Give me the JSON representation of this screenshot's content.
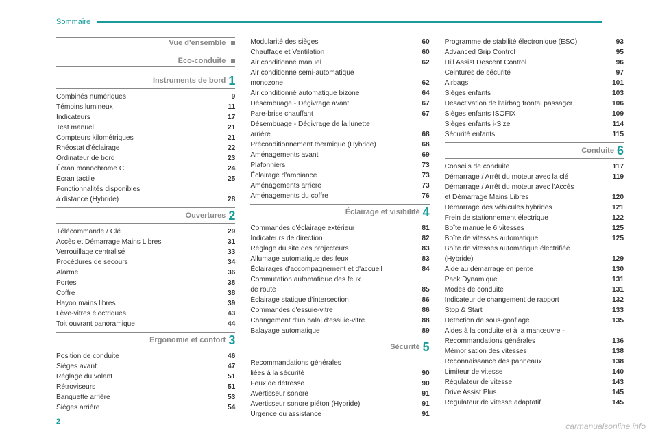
{
  "header": {
    "title": "Sommaire"
  },
  "page_number": "2",
  "watermark": "carmanualsonline.info",
  "colors": {
    "accent": "#1a9b9b",
    "gray": "#888888",
    "text": "#333333",
    "background": "#ffffff"
  },
  "columns": [
    {
      "sections": [
        {
          "title": "Vue d'ensemble",
          "num": "",
          "marker": true,
          "entries": []
        },
        {
          "title": "Eco-conduite",
          "num": "",
          "marker": true,
          "entries": []
        },
        {
          "title": "Instruments de bord",
          "num": "1",
          "marker": false,
          "entries": [
            {
              "label": "Combinés numériques",
              "page": "9"
            },
            {
              "label": "Témoins lumineux",
              "page": "11"
            },
            {
              "label": "Indicateurs",
              "page": "17"
            },
            {
              "label": "Test manuel",
              "page": "21"
            },
            {
              "label": "Compteurs kilométriques",
              "page": "21"
            },
            {
              "label": "Rhéostat d'éclairage",
              "page": "22"
            },
            {
              "label": "Ordinateur de bord",
              "page": "23"
            },
            {
              "label": "Écran monochrome C",
              "page": "24"
            },
            {
              "label": "Écran tactile",
              "page": "25"
            },
            {
              "label": "Fonctionnalités disponibles",
              "page": ""
            },
            {
              "label": "à distance (Hybride)",
              "page": "28"
            }
          ]
        },
        {
          "title": "Ouvertures",
          "num": "2",
          "marker": false,
          "entries": [
            {
              "label": "Télécommande / Clé",
              "page": "29"
            },
            {
              "label": "Accès et Démarrage Mains Libres",
              "page": "31"
            },
            {
              "label": "Verrouillage centralisé",
              "page": "33"
            },
            {
              "label": "Procédures de secours",
              "page": "34"
            },
            {
              "label": "Alarme",
              "page": "36"
            },
            {
              "label": "Portes",
              "page": "38"
            },
            {
              "label": "Coffre",
              "page": "38"
            },
            {
              "label": "Hayon mains libres",
              "page": "39"
            },
            {
              "label": "Lève-vitres électriques",
              "page": "43"
            },
            {
              "label": "Toit ouvrant panoramique",
              "page": "44"
            }
          ]
        },
        {
          "title": "Ergonomie et confort",
          "num": "3",
          "marker": false,
          "entries": [
            {
              "label": "Position de conduite",
              "page": "46"
            },
            {
              "label": "Sièges avant",
              "page": "47"
            },
            {
              "label": "Réglage du volant",
              "page": "51"
            },
            {
              "label": "Rétroviseurs",
              "page": "51"
            },
            {
              "label": "Banquette arrière",
              "page": "53"
            },
            {
              "label": "Sièges arrière",
              "page": "54"
            }
          ]
        }
      ]
    },
    {
      "sections": [
        {
          "title": "",
          "num": "",
          "marker": false,
          "continuation": true,
          "entries": [
            {
              "label": "Modularité des sièges",
              "page": "60"
            },
            {
              "label": "Chauffage et Ventilation",
              "page": "60"
            },
            {
              "label": "Air conditionné manuel",
              "page": "62"
            },
            {
              "label": "Air conditionné semi-automatique",
              "page": ""
            },
            {
              "label": "monozone",
              "page": "62"
            },
            {
              "label": "Air conditionné automatique bizone",
              "page": "64"
            },
            {
              "label": "Désembuage - Dégivrage avant",
              "page": "67"
            },
            {
              "label": "Pare-brise chauffant",
              "page": "67"
            },
            {
              "label": "Désembuage - Dégivrage de la lunette",
              "page": ""
            },
            {
              "label": "arrière",
              "page": "68"
            },
            {
              "label": "Préconditionnement thermique (Hybride)",
              "page": "68"
            },
            {
              "label": "Aménagements avant",
              "page": "69"
            },
            {
              "label": "Plafonniers",
              "page": "73"
            },
            {
              "label": "Éclairage d'ambiance",
              "page": "73"
            },
            {
              "label": "Aménagements arrière",
              "page": "73"
            },
            {
              "label": "Aménagements du coffre",
              "page": "76"
            }
          ]
        },
        {
          "title": "Éclairage et visibilité",
          "num": "4",
          "marker": false,
          "entries": [
            {
              "label": "Commandes d'éclairage extérieur",
              "page": "81"
            },
            {
              "label": "Indicateurs de direction",
              "page": "82"
            },
            {
              "label": "Réglage du site des projecteurs",
              "page": "83"
            },
            {
              "label": "Allumage automatique des feux",
              "page": "83"
            },
            {
              "label": "Éclairages d'accompagnement et d'accueil",
              "page": "84"
            },
            {
              "label": "Commutation automatique des feux",
              "page": ""
            },
            {
              "label": "de route",
              "page": "85"
            },
            {
              "label": "Éclairage statique d'intersection",
              "page": "86"
            },
            {
              "label": "Commandes d'essuie-vitre",
              "page": "86"
            },
            {
              "label": "Changement d'un balai d'essuie-vitre",
              "page": "88"
            },
            {
              "label": "Balayage automatique",
              "page": "89"
            }
          ]
        },
        {
          "title": "Sécurité",
          "num": "5",
          "marker": false,
          "entries": [
            {
              "label": "Recommandations générales",
              "page": ""
            },
            {
              "label": "liées à la sécurité",
              "page": "90"
            },
            {
              "label": "Feux de détresse",
              "page": "90"
            },
            {
              "label": "Avertisseur sonore",
              "page": "91"
            },
            {
              "label": "Avertisseur sonore piéton (Hybride)",
              "page": "91"
            },
            {
              "label": "Urgence ou assistance",
              "page": "91"
            }
          ]
        }
      ]
    },
    {
      "sections": [
        {
          "title": "",
          "num": "",
          "marker": false,
          "continuation": true,
          "entries": [
            {
              "label": "Programme de stabilité électronique (ESC)",
              "page": "93"
            },
            {
              "label": "Advanced Grip Control",
              "page": "95"
            },
            {
              "label": "Hill Assist Descent Control",
              "page": "96"
            },
            {
              "label": "Ceintures de sécurité",
              "page": "97"
            },
            {
              "label": "Airbags",
              "page": "101"
            },
            {
              "label": "Sièges enfants",
              "page": "103"
            },
            {
              "label": "Désactivation de l'airbag frontal passager",
              "page": "106"
            },
            {
              "label": "Sièges enfants ISOFIX",
              "page": "109"
            },
            {
              "label": "Sièges enfants i-Size",
              "page": "114"
            },
            {
              "label": "Sécurité enfants",
              "page": "115"
            }
          ]
        },
        {
          "title": "Conduite",
          "num": "6",
          "marker": false,
          "entries": [
            {
              "label": "Conseils de conduite",
              "page": "117"
            },
            {
              "label": "Démarrage / Arrêt du moteur avec la clé",
              "page": "119"
            },
            {
              "label": "Démarrage / Arrêt du moteur avec l'Accès",
              "page": ""
            },
            {
              "label": "et Démarrage Mains Libres",
              "page": "120"
            },
            {
              "label": "Démarrage des véhicules hybrides",
              "page": "121"
            },
            {
              "label": "Frein de stationnement électrique",
              "page": "122"
            },
            {
              "label": "Boîte manuelle 6 vitesses",
              "page": "125"
            },
            {
              "label": "Boîte de vitesses automatique",
              "page": "125"
            },
            {
              "label": "Boîte de vitesses automatique électrifiée",
              "page": ""
            },
            {
              "label": "(Hybride)",
              "page": "129"
            },
            {
              "label": "Aide au démarrage en pente",
              "page": "130"
            },
            {
              "label": "Pack Dynamique",
              "page": "131"
            },
            {
              "label": "Modes de conduite",
              "page": "131"
            },
            {
              "label": "Indicateur de changement de rapport",
              "page": "132"
            },
            {
              "label": "Stop & Start",
              "page": "133"
            },
            {
              "label": "Détection de sous-gonflage",
              "page": "135"
            },
            {
              "label": "Aides à la conduite et à la manœuvre -",
              "page": ""
            },
            {
              "label": "Recommandations générales",
              "page": "136"
            },
            {
              "label": "Mémorisation des vitesses",
              "page": "138"
            },
            {
              "label": "Reconnaissance des panneaux",
              "page": "138"
            },
            {
              "label": "Limiteur de vitesse",
              "page": "140"
            },
            {
              "label": "Régulateur de vitesse",
              "page": "143"
            },
            {
              "label": "Drive Assist Plus",
              "page": "145"
            },
            {
              "label": "Régulateur de vitesse adaptatif",
              "page": "145"
            }
          ]
        }
      ]
    }
  ]
}
